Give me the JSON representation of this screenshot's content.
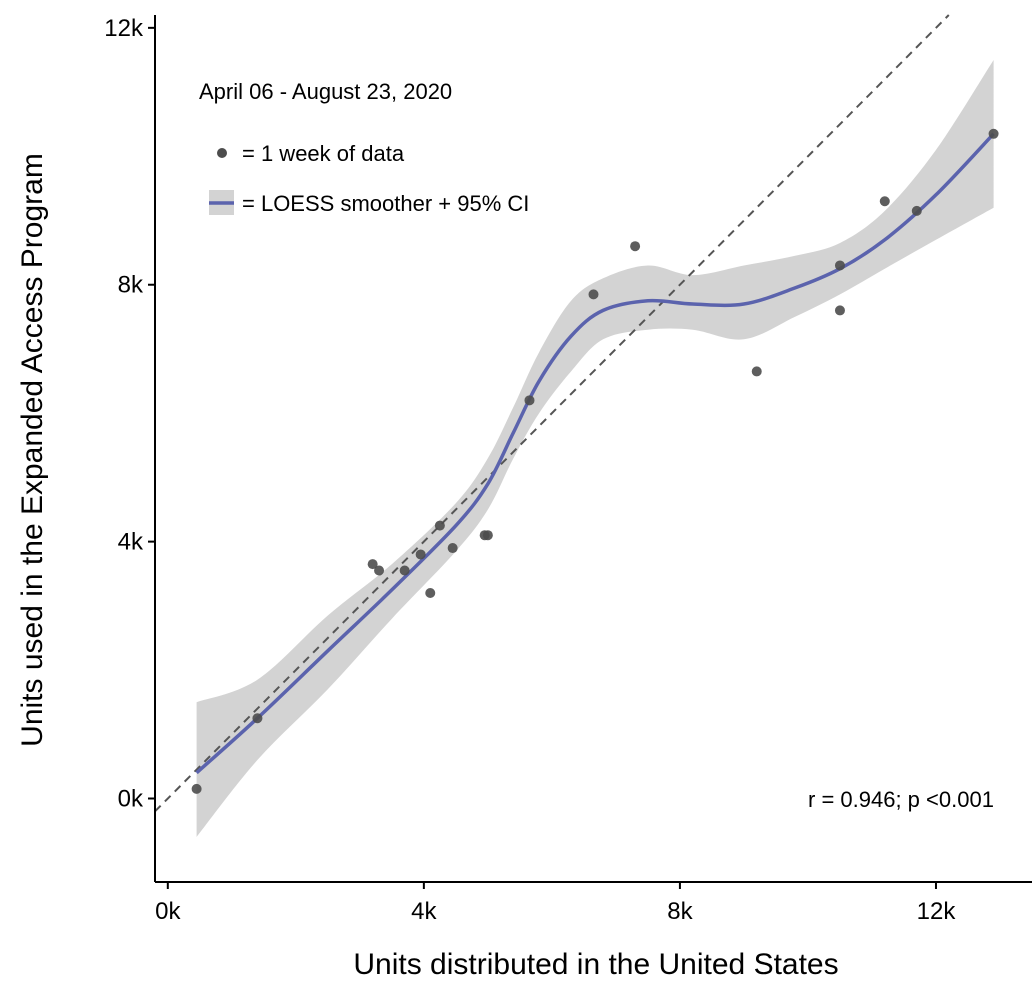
{
  "chart_data": {
    "type": "scatter",
    "xlabel": "Units distributed in the United States",
    "ylabel": "Units used in the Expanded Access Program",
    "xlim": [
      -200,
      13500
    ],
    "ylim": [
      -1300,
      12200
    ],
    "x_ticks": [
      0,
      4000,
      8000,
      12000
    ],
    "x_tick_labels": [
      "0k",
      "4k",
      "8k",
      "12k"
    ],
    "y_ticks": [
      0,
      4000,
      8000,
      12000
    ],
    "y_tick_labels": [
      "0k",
      "4k",
      "8k",
      "12k"
    ],
    "grid": false,
    "reference_line": {
      "style": "dashed",
      "color": "#555555",
      "slope": 1,
      "intercept": 0
    },
    "legend": {
      "placement": "top-left",
      "title": "April 06 - August 23, 2020",
      "entries": [
        {
          "label": "= 1 week of data",
          "symbol": "point"
        },
        {
          "label": "= LOESS smoother + 95% CI",
          "symbol": "line-band"
        }
      ]
    },
    "annotation": "r = 0.946; p <0.001",
    "series": [
      {
        "type": "scatter",
        "color": "#4d4d4d",
        "points": [
          [
            450,
            150
          ],
          [
            1400,
            1250
          ],
          [
            3200,
            3650
          ],
          [
            3300,
            3550
          ],
          [
            3700,
            3550
          ],
          [
            3950,
            3800
          ],
          [
            4100,
            3200
          ],
          [
            4250,
            4250
          ],
          [
            4450,
            3900
          ],
          [
            4950,
            4100
          ],
          [
            5000,
            4100
          ],
          [
            5650,
            6200
          ],
          [
            6650,
            7850
          ],
          [
            7300,
            8600
          ],
          [
            9200,
            6650
          ],
          [
            10500,
            7600
          ],
          [
            10500,
            8300
          ],
          [
            11200,
            9300
          ],
          [
            11700,
            9150
          ],
          [
            12900,
            10350
          ]
        ]
      },
      {
        "type": "line",
        "smoother": "LOESS",
        "color": "#5b63ad",
        "band_color": "#d3d3d3",
        "points": [
          [
            450,
            400,
            -600,
            1500
          ],
          [
            1400,
            1250,
            600,
            1850
          ],
          [
            2500,
            2300,
            1700,
            2850
          ],
          [
            3500,
            3250,
            2800,
            3650
          ],
          [
            4500,
            4250,
            3850,
            4600
          ],
          [
            5000,
            4900,
            4500,
            5300
          ],
          [
            5400,
            5700,
            5300,
            6100
          ],
          [
            5800,
            6500,
            6000,
            6950
          ],
          [
            6300,
            7200,
            6650,
            7750
          ],
          [
            6800,
            7600,
            7150,
            8100
          ],
          [
            7500,
            7750,
            7300,
            8300
          ],
          [
            8200,
            7700,
            7300,
            8150
          ],
          [
            9000,
            7700,
            7150,
            8300
          ],
          [
            9800,
            7950,
            7500,
            8450
          ],
          [
            10500,
            8250,
            7850,
            8650
          ],
          [
            11200,
            8700,
            8250,
            9150
          ],
          [
            12000,
            9400,
            8700,
            10100
          ],
          [
            12900,
            10350,
            9200,
            11500
          ]
        ]
      }
    ]
  }
}
